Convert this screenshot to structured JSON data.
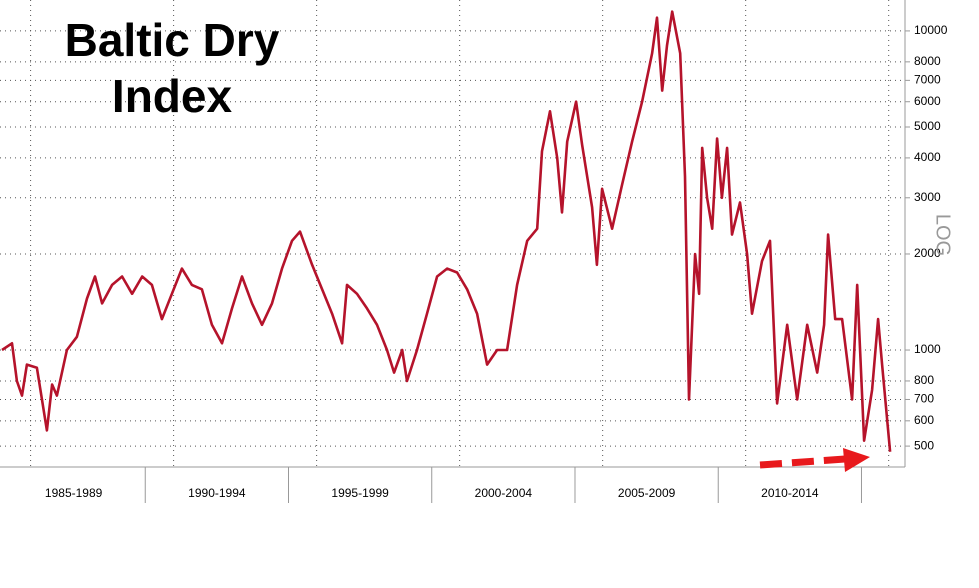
{
  "chart_data": {
    "type": "line",
    "title": "Baltic Dry Index",
    "y_label": "LOG",
    "log_scale": true,
    "categories": [
      "1985-1989",
      "1990-1994",
      "1995-1999",
      "2000-2004",
      "2005-2009",
      "2010-2014"
    ],
    "x": [
      1985.0,
      1985.35,
      1985.52,
      1985.7,
      1985.87,
      1986.22,
      1986.57,
      1986.75,
      1986.92,
      1987.27,
      1987.62,
      1987.97,
      1988.25,
      1988.5,
      1988.85,
      1989.2,
      1989.55,
      1989.9,
      1990.24,
      1990.59,
      1990.94,
      1991.29,
      1991.64,
      1991.99,
      1992.34,
      1992.69,
      1993.04,
      1993.39,
      1993.74,
      1994.09,
      1994.44,
      1994.79,
      1995.14,
      1995.42,
      1995.84,
      1996.19,
      1996.54,
      1996.89,
      1997.06,
      1997.41,
      1997.76,
      1998.11,
      1998.46,
      1998.71,
      1998.99,
      1999.16,
      1999.51,
      1999.86,
      2000.21,
      2000.56,
      2000.91,
      2001.26,
      2001.61,
      2001.96,
      2002.31,
      2002.66,
      2003.01,
      2003.36,
      2003.71,
      2003.88,
      2004.16,
      2004.41,
      2004.58,
      2004.76,
      2005.07,
      2005.28,
      2005.63,
      2005.8,
      2005.98,
      2006.33,
      2006.68,
      2007.03,
      2007.38,
      2007.73,
      2007.9,
      2008.08,
      2008.25,
      2008.43,
      2008.71,
      2008.88,
      2009.02,
      2009.23,
      2009.37,
      2009.48,
      2009.65,
      2009.83,
      2010.0,
      2010.17,
      2010.35,
      2010.52,
      2010.8,
      2011.05,
      2011.22,
      2011.57,
      2011.85,
      2012.1,
      2012.45,
      2012.8,
      2013.15,
      2013.5,
      2013.74,
      2013.88,
      2014.13,
      2014.37,
      2014.72,
      2014.9,
      2015.14,
      2015.42,
      2015.63,
      2015.77,
      2016.05
    ],
    "values": [
      1000,
      1050,
      800,
      720,
      900,
      880,
      560,
      780,
      720,
      1000,
      1100,
      1450,
      1700,
      1400,
      1600,
      1700,
      1500,
      1700,
      1600,
      1250,
      1500,
      1800,
      1600,
      1550,
      1200,
      1050,
      1350,
      1700,
      1400,
      1200,
      1400,
      1800,
      2200,
      2350,
      1850,
      1550,
      1300,
      1050,
      1600,
      1500,
      1350,
      1200,
      1000,
      850,
      1000,
      800,
      1000,
      1300,
      1700,
      1800,
      1750,
      1550,
      1300,
      900,
      1000,
      1000,
      1600,
      2200,
      2400,
      4200,
      5600,
      4000,
      2700,
      4500,
      6000,
      4400,
      2800,
      1850,
      3200,
      2400,
      3300,
      4500,
      6000,
      8500,
      11000,
      6500,
      9000,
      11500,
      8500,
      3500,
      700,
      2000,
      1500,
      4300,
      3000,
      2400,
      4600,
      3000,
      4300,
      2300,
      2900,
      2000,
      1300,
      1900,
      2200,
      680,
      1200,
      700,
      1200,
      850,
      1200,
      2300,
      1250,
      1250,
      700,
      1600,
      520,
      750,
      1250,
      900,
      480
    ],
    "color": "#b5132b",
    "xlim": [
      1985,
      2016.57
    ],
    "xgrid": [
      1986,
      1991,
      1996,
      2001,
      2006,
      2011,
      2016
    ],
    "ylim": [
      430,
      12500
    ],
    "yticks": [
      500,
      600,
      700,
      800,
      1000,
      2000,
      3000,
      4000,
      5000,
      6000,
      7000,
      8000,
      10000
    ],
    "grid": true
  }
}
